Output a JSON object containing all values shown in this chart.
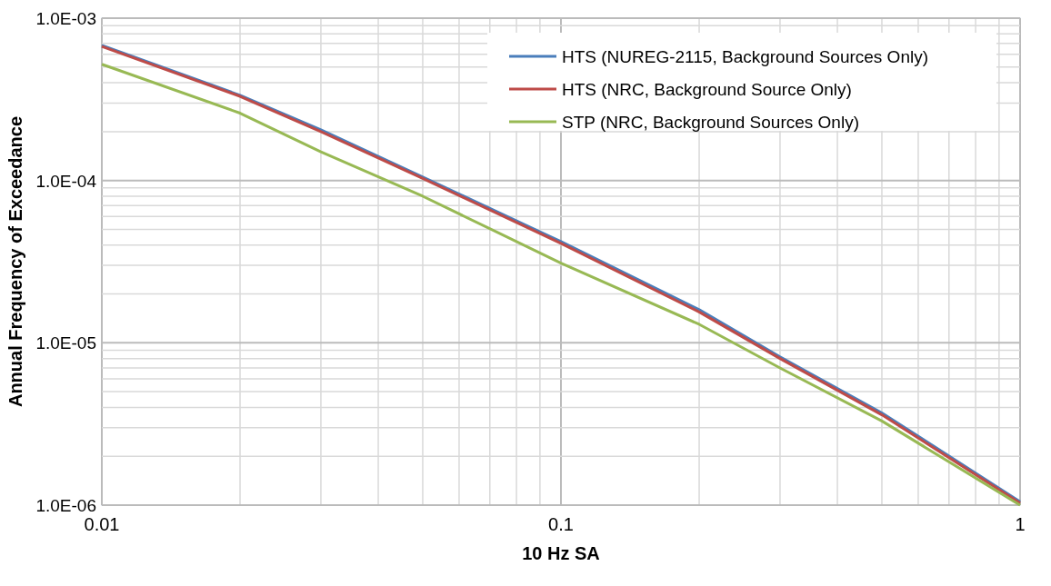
{
  "chart_data": {
    "type": "line",
    "xlabel": "10 Hz SA",
    "ylabel": "Annual Frequency of Exceedance",
    "log": "xy",
    "grid": true,
    "legend": "top right",
    "x": [
      0.01,
      0.02,
      0.03,
      0.05,
      0.1,
      0.2,
      0.3,
      0.5,
      1
    ],
    "xlim": [
      0.01,
      1
    ],
    "ylim": [
      1e-06,
      0.001
    ],
    "xticks": [
      {
        "value": 0.01,
        "label": "0.01"
      },
      {
        "value": 0.02,
        "label": null
      },
      {
        "value": 0.03,
        "label": null
      },
      {
        "value": 0.04,
        "label": null
      },
      {
        "value": 0.05,
        "label": null
      },
      {
        "value": 0.06,
        "label": null
      },
      {
        "value": 0.07,
        "label": null
      },
      {
        "value": 0.08,
        "label": null
      },
      {
        "value": 0.09,
        "label": null
      },
      {
        "value": 0.1,
        "label": "0.1"
      },
      {
        "value": 0.2,
        "label": null
      },
      {
        "value": 0.3,
        "label": null
      },
      {
        "value": 0.4,
        "label": null
      },
      {
        "value": 0.5,
        "label": null
      },
      {
        "value": 0.6,
        "label": null
      },
      {
        "value": 0.7,
        "label": null
      },
      {
        "value": 0.8,
        "label": null
      },
      {
        "value": 0.9,
        "label": null
      },
      {
        "value": 1,
        "label": "1"
      }
    ],
    "yticks": [
      {
        "value": 1e-06,
        "label": "1.0E-06"
      },
      {
        "value": 2e-06,
        "label": null
      },
      {
        "value": 3e-06,
        "label": null
      },
      {
        "value": 4e-06,
        "label": null
      },
      {
        "value": 5e-06,
        "label": null
      },
      {
        "value": 6e-06,
        "label": null
      },
      {
        "value": 7e-06,
        "label": null
      },
      {
        "value": 8e-06,
        "label": null
      },
      {
        "value": 9e-06,
        "label": null
      },
      {
        "value": 1e-05,
        "label": "1.0E-05"
      },
      {
        "value": 2e-05,
        "label": null
      },
      {
        "value": 3e-05,
        "label": null
      },
      {
        "value": 4e-05,
        "label": null
      },
      {
        "value": 5e-05,
        "label": null
      },
      {
        "value": 6e-05,
        "label": null
      },
      {
        "value": 7e-05,
        "label": null
      },
      {
        "value": 8e-05,
        "label": null
      },
      {
        "value": 9e-05,
        "label": null
      },
      {
        "value": 0.0001,
        "label": "1.0E-04"
      },
      {
        "value": 0.0002,
        "label": null
      },
      {
        "value": 0.0003,
        "label": null
      },
      {
        "value": 0.0004,
        "label": null
      },
      {
        "value": 0.0005,
        "label": null
      },
      {
        "value": 0.0006,
        "label": null
      },
      {
        "value": 0.0007,
        "label": null
      },
      {
        "value": 0.0008,
        "label": null
      },
      {
        "value": 0.0009,
        "label": null
      },
      {
        "value": 0.001,
        "label": "1.0E-03"
      }
    ],
    "series": [
      {
        "name": "HTS (NUREG-2115, Background Sources Only)",
        "color": "#4a7ebb",
        "values": [
          0.00068,
          0.000335,
          0.000205,
          0.000105,
          4.2e-05,
          1.6e-05,
          8.2e-06,
          3.7e-06,
          1.05e-06
        ]
      },
      {
        "name": "HTS (NRC, Background Source Only)",
        "color": "#be4b48",
        "values": [
          0.00067,
          0.00033,
          0.0002,
          0.000103,
          4.1e-05,
          1.55e-05,
          8e-06,
          3.6e-06,
          1.03e-06
        ]
      },
      {
        "name": "STP (NRC, Background Sources Only)",
        "color": "#98b954",
        "values": [
          0.00052,
          0.00026,
          0.00015,
          8e-05,
          3.1e-05,
          1.3e-05,
          7e-06,
          3.3e-06,
          1e-06
        ]
      }
    ]
  }
}
